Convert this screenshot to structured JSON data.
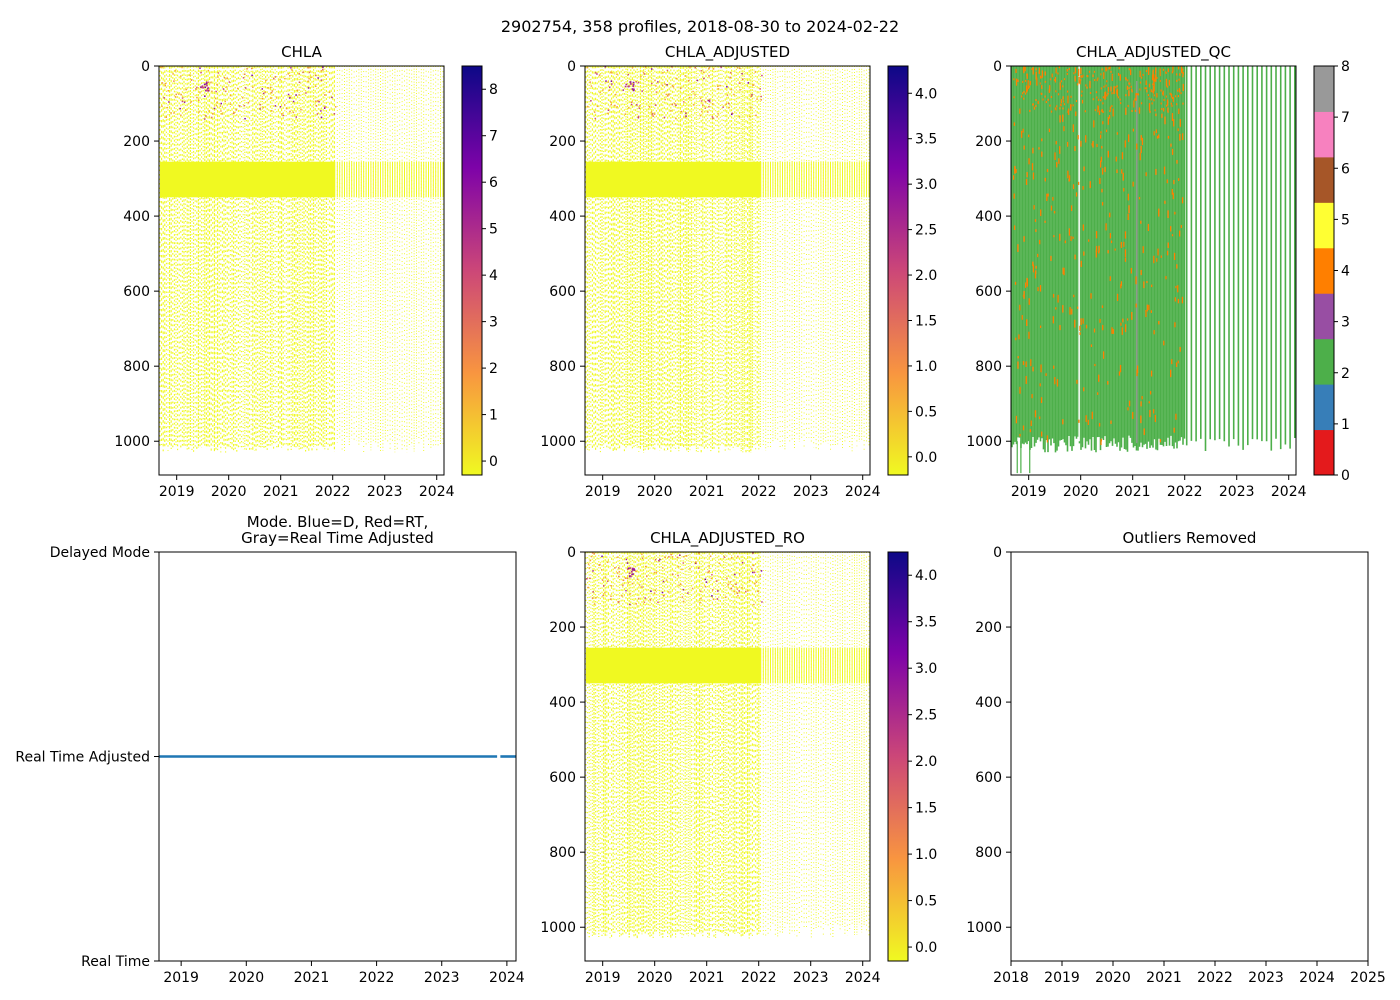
{
  "suptitle": "2902754, 358 profiles, 2018-08-30 to 2024-02-22",
  "chart_data": [
    {
      "id": "chla",
      "type": "heatmap",
      "title": "CHLA",
      "x_tick_labels": [
        "2019",
        "2020",
        "2021",
        "2022",
        "2023",
        "2024"
      ],
      "x_ticks": [
        2019,
        2020,
        2021,
        2022,
        2023,
        2024
      ],
      "xlim": [
        2018.66,
        2024.14
      ],
      "y_ticks": [
        0,
        200,
        400,
        600,
        800,
        1000
      ],
      "ylim": [
        1090,
        0
      ],
      "colorbar": {
        "colormap": "plasma_r",
        "range": [
          -0.3,
          8.5
        ],
        "ticks": [
          0,
          1,
          2,
          3,
          4,
          5,
          6,
          7,
          8
        ],
        "tick_labels": [
          "0",
          "1",
          "2",
          "3",
          "4",
          "5",
          "6",
          "7",
          "8"
        ]
      },
      "data_end": 2022.05,
      "band": [
        255,
        350
      ],
      "max_depth": 1030
    },
    {
      "id": "chla-adjusted",
      "type": "heatmap",
      "title": "CHLA_ADJUSTED",
      "x_tick_labels": [
        "2019",
        "2020",
        "2021",
        "2022",
        "2023",
        "2024"
      ],
      "x_ticks": [
        2019,
        2020,
        2021,
        2022,
        2023,
        2024
      ],
      "xlim": [
        2018.66,
        2024.14
      ],
      "y_ticks": [
        0,
        200,
        400,
        600,
        800,
        1000
      ],
      "ylim": [
        1090,
        0
      ],
      "colorbar": {
        "colormap": "plasma_r",
        "range": [
          -0.2,
          4.3
        ],
        "ticks": [
          0.0,
          0.5,
          1.0,
          1.5,
          2.0,
          2.5,
          3.0,
          3.5,
          4.0
        ],
        "tick_labels": [
          "0.0",
          "0.5",
          "1.0",
          "1.5",
          "2.0",
          "2.5",
          "3.0",
          "3.5",
          "4.0"
        ]
      },
      "data_end": 2022.05,
      "band": [
        255,
        350
      ],
      "max_depth": 1030
    },
    {
      "id": "chla-adjusted-qc",
      "type": "heatmap",
      "title": "CHLA_ADJUSTED_QC",
      "x_tick_labels": [
        "2019",
        "2020",
        "2021",
        "2022",
        "2023",
        "2024"
      ],
      "x_ticks": [
        2019,
        2020,
        2021,
        2022,
        2023,
        2024
      ],
      "xlim": [
        2018.66,
        2024.14
      ],
      "y_ticks": [
        0,
        200,
        400,
        600,
        800,
        1000
      ],
      "ylim": [
        1090,
        0
      ],
      "colorbar": {
        "colormap": "qc_categorical",
        "range": [
          0,
          8
        ],
        "ticks": [
          0,
          1,
          2,
          3,
          4,
          5,
          6,
          7,
          8
        ],
        "tick_labels": [
          "0",
          "1",
          "2",
          "3",
          "4",
          "5",
          "6",
          "7",
          "8"
        ],
        "colors": [
          "#e41a1c",
          "#377eb8",
          "#4daf4a",
          "#984ea3",
          "#ff7f00",
          "#ffff33",
          "#a65628",
          "#f781bf",
          "#999999"
        ]
      },
      "dominant_flag": 2,
      "outlier_flag": 4,
      "dense_until": 2022.0
    },
    {
      "id": "mode",
      "type": "line",
      "title": "Mode. Blue=D, Red=RT,\nGray=Real Time Adjusted",
      "x_tick_labels": [
        "2019",
        "2020",
        "2021",
        "2022",
        "2023",
        "2024"
      ],
      "x_ticks": [
        2019,
        2020,
        2021,
        2022,
        2023,
        2024
      ],
      "xlim": [
        2018.66,
        2024.14
      ],
      "y_tick_labels": [
        "Delayed Mode",
        "Real Time Adjusted",
        "Real Time"
      ],
      "y_ticks": [
        2,
        1,
        0
      ],
      "ylim": [
        0,
        2
      ],
      "series": [
        {
          "name": "mode",
          "color": "#1f77b4",
          "x_start": 2018.66,
          "x_end": 2024.14,
          "y": 1,
          "gap": [
            2023.85,
            2023.9
          ]
        }
      ]
    },
    {
      "id": "chla-adjusted-ro",
      "type": "heatmap",
      "title": "CHLA_ADJUSTED_RO",
      "x_tick_labels": [
        "2019",
        "2020",
        "2021",
        "2022",
        "2023",
        "2024"
      ],
      "x_ticks": [
        2019,
        2020,
        2021,
        2022,
        2023,
        2024
      ],
      "xlim": [
        2018.66,
        2024.14
      ],
      "y_ticks": [
        0,
        200,
        400,
        600,
        800,
        1000
      ],
      "ylim": [
        1090,
        0
      ],
      "colorbar": {
        "colormap": "plasma_r",
        "range": [
          -0.15,
          4.25
        ],
        "ticks": [
          0.0,
          0.5,
          1.0,
          1.5,
          2.0,
          2.5,
          3.0,
          3.5,
          4.0
        ],
        "tick_labels": [
          "0.0",
          "0.5",
          "1.0",
          "1.5",
          "2.0",
          "2.5",
          "3.0",
          "3.5",
          "4.0"
        ]
      },
      "data_end": 2022.05,
      "band": [
        255,
        350
      ],
      "max_depth": 1030
    },
    {
      "id": "outliers",
      "type": "scatter",
      "title": "Outliers Removed",
      "x_tick_labels": [
        "2018",
        "2019",
        "2020",
        "2021",
        "2022",
        "2023",
        "2024",
        "2025"
      ],
      "x_ticks": [
        2018,
        2019,
        2020,
        2021,
        2022,
        2023,
        2024,
        2025
      ],
      "xlim": [
        2018,
        2025
      ],
      "y_ticks": [
        0,
        200,
        400,
        600,
        800,
        1000
      ],
      "ylim": [
        1090,
        0
      ],
      "points": []
    }
  ]
}
